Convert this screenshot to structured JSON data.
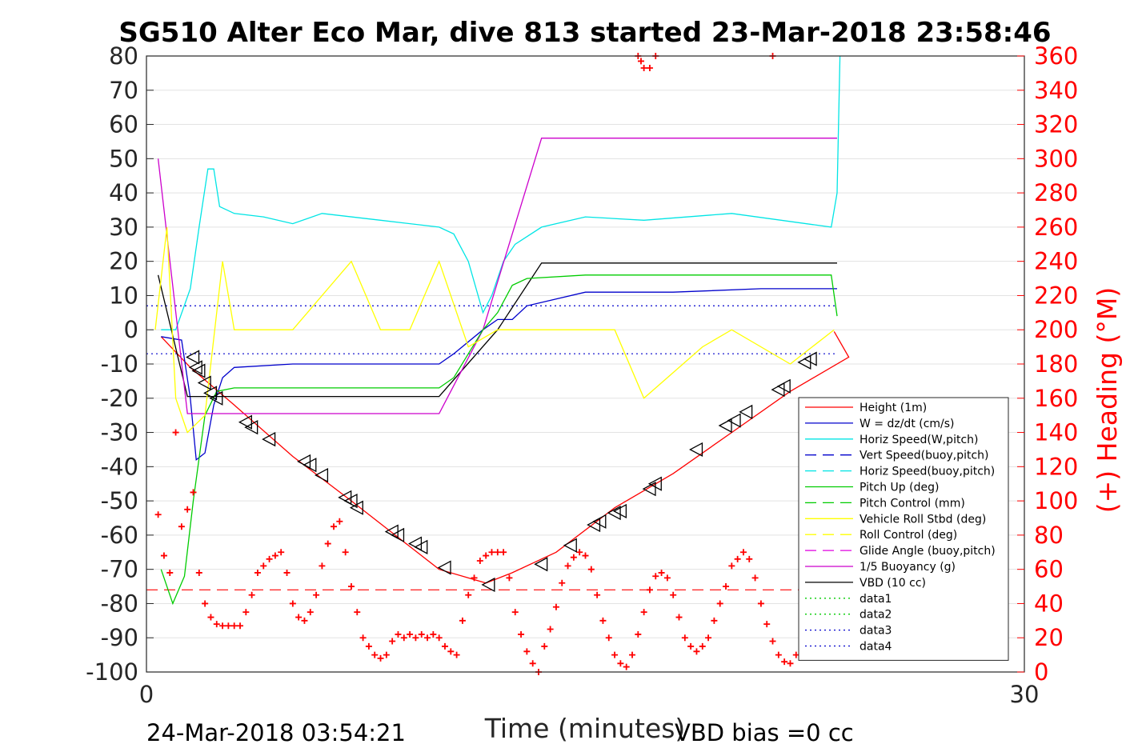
{
  "chart_data": {
    "type": "line",
    "title": "SG510 Alter Eco Mar, dive 813 started 23-Mar-2018 23:58:46",
    "xlabel": "Time (minutes)",
    "ylabel_right": "(+) Heading (°M)",
    "footer_left": "24-Mar-2018 03:54:21",
    "footer_right": "VBD bias =0 cc",
    "xlim": [
      0,
      30
    ],
    "ylim": [
      -100,
      80
    ],
    "ylim_right": [
      0,
      360
    ],
    "x_ticks": [
      "0",
      "30"
    ],
    "y_ticks": [
      "80",
      "70",
      "60",
      "50",
      "40",
      "30",
      "20",
      "10",
      "0",
      "-10",
      "-20",
      "-30",
      "-40",
      "-50",
      "-60",
      "-70",
      "-80",
      "-90",
      "-100"
    ],
    "y_ticks_right": [
      "360",
      "340",
      "320",
      "300",
      "280",
      "260",
      "240",
      "220",
      "200",
      "180",
      "160",
      "140",
      "120",
      "100",
      "80",
      "60",
      "40",
      "20",
      "0"
    ],
    "grid": "horizontal",
    "legend_position": "bottom-right",
    "colors": {
      "height": "#ff0000",
      "w": "#0000cc",
      "horiz": "#00e5e5",
      "pitch": "#00cc00",
      "roll": "#ffff00",
      "glide": "#e000e0",
      "buoy": "#cc00cc",
      "vbd": "#000000",
      "heading": "#ff0000"
    },
    "legend": [
      {
        "label": "Height (1m)",
        "color": "#ff0000",
        "dash": "solid"
      },
      {
        "label": "W = dz/dt (cm/s)",
        "color": "#0000cc",
        "dash": "solid"
      },
      {
        "label": "Horiz Speed(W,pitch)",
        "color": "#00e5e5",
        "dash": "solid"
      },
      {
        "label": "Vert Speed(buoy,pitch)",
        "color": "#0000cc",
        "dash": "dashed"
      },
      {
        "label": "Horiz Speed(buoy,pitch)",
        "color": "#00e5e5",
        "dash": "dashed"
      },
      {
        "label": "Pitch Up (deg)",
        "color": "#00cc00",
        "dash": "solid"
      },
      {
        "label": "Pitch Control (mm)",
        "color": "#00cc00",
        "dash": "dashed"
      },
      {
        "label": "Vehicle Roll Stbd (deg)",
        "color": "#ffff00",
        "dash": "solid"
      },
      {
        "label": "Roll Control (deg)",
        "color": "#ffff00",
        "dash": "dashed"
      },
      {
        "label": "Glide Angle (buoy,pitch)",
        "color": "#e000e0",
        "dash": "dashed"
      },
      {
        "label": "1/5 Buoyancy (g)",
        "color": "#cc00cc",
        "dash": "solid"
      },
      {
        "label": "VBD (10 cc)",
        "color": "#000000",
        "dash": "solid"
      },
      {
        "label": "data1",
        "color": "#00cc00",
        "dash": "dotted"
      },
      {
        "label": "data2",
        "color": "#00cc00",
        "dash": "dotted"
      },
      {
        "label": "data3",
        "color": "#0000cc",
        "dash": "dotted"
      },
      {
        "label": "data4",
        "color": "#0000cc",
        "dash": "dotted"
      }
    ],
    "series": [
      {
        "key": "height",
        "x": [
          0.5,
          1.5,
          3,
          5,
          7,
          8.5,
          10,
          11.6,
          12.5,
          14,
          16,
          18,
          20,
          22,
          24,
          23.5
        ],
        "y": [
          -2,
          -11,
          -22,
          -37,
          -50,
          -60,
          -70,
          -74,
          -71,
          -65,
          -52,
          -42,
          -30,
          -18,
          -8,
          -0.5
        ]
      },
      {
        "key": "w",
        "x": [
          0.5,
          1.2,
          1.5,
          1.7,
          2.0,
          2.3,
          2.6,
          3,
          5,
          8,
          10,
          10.5,
          11.5,
          12.0,
          12.5,
          13,
          14,
          15,
          18,
          21,
          23.4,
          23.6
        ],
        "y": [
          -2,
          -3,
          -20,
          -38,
          -36,
          -22,
          -14,
          -11,
          -10,
          -10,
          -10,
          -7,
          0,
          3,
          3,
          7,
          9,
          11,
          11,
          12,
          12,
          12
        ]
      },
      {
        "key": "horiz",
        "x": [
          0.5,
          1.0,
          1.5,
          1.8,
          2.1,
          2.3,
          2.5,
          3,
          4,
          5,
          6,
          8,
          10,
          10.5,
          11,
          11.5,
          11.8,
          12.2,
          12.6,
          13.5,
          14,
          15,
          17,
          20,
          23.4,
          23.6,
          23.7
        ],
        "y": [
          0,
          0,
          12,
          30,
          47,
          47,
          36,
          34,
          33,
          31,
          34,
          32,
          30,
          28,
          20,
          5,
          10,
          20,
          25,
          30,
          31,
          33,
          32,
          34,
          30,
          40,
          80
        ]
      },
      {
        "key": "vbd",
        "x": [
          0.4,
          1.4,
          5,
          10,
          12,
          13.5,
          23.6
        ],
        "y": [
          16,
          -19.5,
          -19.5,
          -19.5,
          0,
          19.5,
          19.5
        ]
      },
      {
        "key": "buoy",
        "x": [
          0.4,
          1.4,
          10,
          11.5,
          13.5,
          23.6
        ],
        "y": [
          50,
          -24.5,
          -24.5,
          0,
          56,
          56
        ]
      },
      {
        "key": "pitch",
        "x": [
          0.5,
          0.9,
          1.3,
          1.6,
          2.0,
          2.4,
          3,
          5,
          8,
          10,
          10.5,
          11.5,
          12,
          12.5,
          13,
          15,
          18,
          21,
          23.4,
          23.6
        ],
        "y": [
          -70,
          -80,
          -72,
          -50,
          -25,
          -18,
          -17,
          -17,
          -17,
          -17,
          -14,
          0,
          5,
          13,
          15,
          16,
          16,
          16,
          16,
          4
        ]
      },
      {
        "key": "roll",
        "x": [
          0.3,
          0.7,
          1.0,
          1.4,
          2.0,
          2.6,
          3,
          5,
          7,
          8,
          9,
          10,
          11,
          12,
          13,
          14,
          16,
          17,
          19,
          20,
          22,
          23.5
        ],
        "y": [
          0,
          30,
          -20,
          -30,
          -25,
          20,
          0,
          0,
          20,
          0,
          0,
          20,
          -5,
          0,
          0,
          0,
          0,
          -20,
          -5,
          0,
          -10,
          0
        ]
      }
    ],
    "heading": {
      "x": [
        0.4,
        0.6,
        0.8,
        1.0,
        1.2,
        1.4,
        1.6,
        1.8,
        2.0,
        2.2,
        2.4,
        2.6,
        2.8,
        3.0,
        3.2,
        3.4,
        3.6,
        3.8,
        4.0,
        4.2,
        4.4,
        4.6,
        4.8,
        5.0,
        5.2,
        5.4,
        5.6,
        5.8,
        6.0,
        6.2,
        6.4,
        6.6,
        6.8,
        7.0,
        7.2,
        7.4,
        7.6,
        7.8,
        8.0,
        8.2,
        8.4,
        8.6,
        8.8,
        9.0,
        9.2,
        9.4,
        9.6,
        9.8,
        10.0,
        10.2,
        10.4,
        10.6,
        10.8,
        11.0,
        11.2,
        11.4,
        11.6,
        11.8,
        12.0,
        12.2,
        12.4,
        12.6,
        12.8,
        13.0,
        13.2,
        13.4,
        13.6,
        13.8,
        14.0,
        14.2,
        14.4,
        14.6,
        14.8,
        15.0,
        15.2,
        15.4,
        15.6,
        15.8,
        16.0,
        16.2,
        16.4,
        16.6,
        16.8,
        17.0,
        17.2,
        17.4,
        17.6,
        17.8,
        18.0,
        18.2,
        18.4,
        18.6,
        18.8,
        19.0,
        19.2,
        19.4,
        19.6,
        19.8,
        20.0,
        20.2,
        20.4,
        20.6,
        20.8,
        21.0,
        21.2,
        21.4,
        21.6,
        21.8,
        22.0,
        22.2,
        22.4,
        22.6,
        22.8,
        23.0,
        23.2,
        23.4
      ],
      "y": [
        92,
        68,
        58,
        140,
        85,
        95,
        105,
        58,
        40,
        32,
        28,
        27,
        27,
        27,
        27,
        35,
        45,
        58,
        62,
        66,
        68,
        70,
        58,
        40,
        32,
        30,
        35,
        45,
        62,
        75,
        85,
        88,
        70,
        50,
        35,
        20,
        15,
        10,
        8,
        10,
        18,
        22,
        20,
        22,
        20,
        22,
        20,
        22,
        20,
        15,
        12,
        10,
        30,
        45,
        55,
        65,
        68,
        70,
        70,
        70,
        55,
        35,
        22,
        12,
        5,
        0,
        15,
        25,
        38,
        52,
        62,
        67,
        70,
        68,
        60,
        45,
        30,
        20,
        10,
        5,
        3,
        10,
        22,
        35,
        48,
        56,
        58,
        55,
        45,
        32,
        20,
        15,
        12,
        15,
        20,
        30,
        40,
        50,
        62,
        66,
        70,
        66,
        55,
        40,
        28,
        18,
        10,
        6,
        5,
        10,
        20,
        32,
        46,
        60,
        66,
        70
      ],
      "wrap_high": {
        "x": [
          16.8,
          16.9,
          17.0,
          17.2,
          17.4,
          21.4
        ],
        "y": [
          360,
          357,
          353,
          353,
          360,
          360
        ]
      }
    },
    "reference_lines": [
      {
        "axis": "left",
        "value": 7,
        "color": "#0000cc",
        "dash": "dotted"
      },
      {
        "axis": "left",
        "value": -7,
        "color": "#0000cc",
        "dash": "dotted"
      },
      {
        "axis": "left",
        "value": -76,
        "color": "#ff0000",
        "dash": "dashed"
      }
    ],
    "markers": {
      "symbol": "triangle-left",
      "x": [
        1.6,
        1.7,
        1.8,
        2.0,
        2.2,
        2.4,
        3.4,
        3.6,
        4.2,
        5.4,
        5.6,
        6.0,
        6.8,
        7.0,
        7.2,
        8.4,
        8.6,
        9.2,
        9.4,
        10.2,
        11.7,
        13.5,
        14.5,
        15.3,
        15.5,
        16.0,
        16.2,
        17.2,
        17.4,
        18.8,
        19.8,
        20.1,
        20.5,
        21.6,
        21.8,
        22.5,
        22.7
      ],
      "y": [
        -8,
        -11,
        -12,
        -15.5,
        -18.5,
        -20,
        -27,
        -28.5,
        -32,
        -38.5,
        -39.5,
        -42.5,
        -49,
        -50,
        -52,
        -59,
        -60,
        -62.5,
        -63.5,
        -69.5,
        -74.5,
        -68.5,
        -63,
        -57,
        -56,
        -53.5,
        -53,
        -46.5,
        -45,
        -35,
        -28,
        -26.5,
        -24,
        -17.5,
        -16.5,
        -9.5,
        -8.5
      ]
    }
  }
}
